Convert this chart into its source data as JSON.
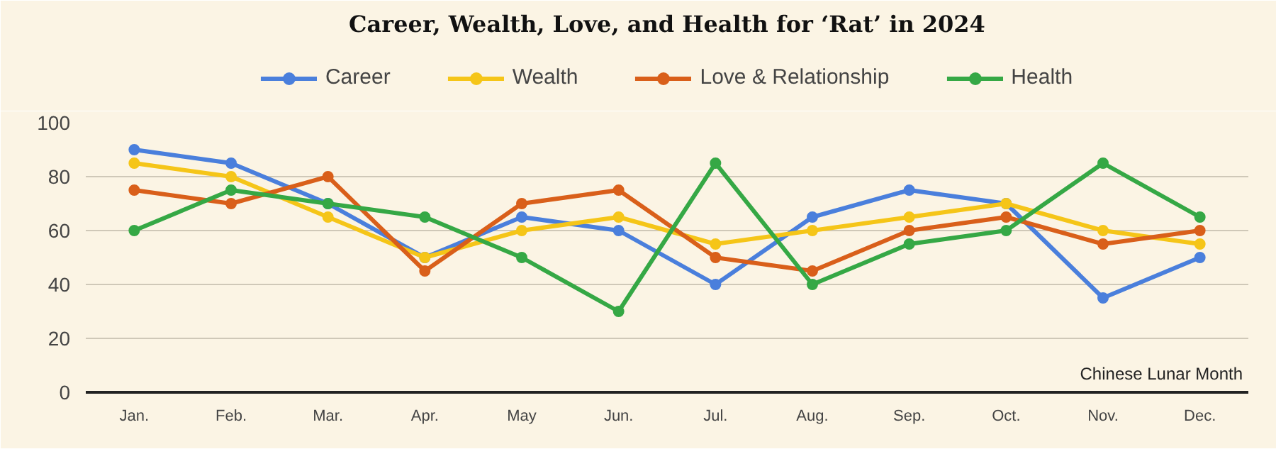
{
  "chart_data": {
    "type": "line",
    "title": "Career, Wealth, Love, and Health for ‘Rat’ in 2024",
    "xlabel": "Chinese Lunar Month",
    "categories": [
      "Jan.",
      "Feb.",
      "Mar.",
      "Apr.",
      "May",
      "Jun.",
      "Jul.",
      "Aug.",
      "Sep.",
      "Oct.",
      "Nov.",
      "Dec."
    ],
    "series": [
      {
        "name": "Career",
        "color": "#4a7fdc",
        "values": [
          90,
          85,
          70,
          50,
          65,
          60,
          40,
          65,
          75,
          70,
          35,
          50
        ]
      },
      {
        "name": "Wealth",
        "color": "#f5c518",
        "values": [
          85,
          80,
          65,
          50,
          60,
          65,
          55,
          60,
          65,
          70,
          60,
          55
        ]
      },
      {
        "name": "Love & Relationship",
        "color": "#d95f1a",
        "values": [
          75,
          70,
          80,
          45,
          70,
          75,
          50,
          45,
          60,
          65,
          55,
          60
        ]
      },
      {
        "name": "Health",
        "color": "#35a845",
        "values": [
          60,
          75,
          70,
          65,
          50,
          30,
          85,
          40,
          55,
          60,
          85,
          65
        ]
      }
    ],
    "ylim": [
      0,
      100
    ],
    "yticks": [
      0,
      20,
      40,
      60,
      80,
      100
    ],
    "grid": "y",
    "legend": "top",
    "marker": "circle",
    "line_style": "solid"
  }
}
